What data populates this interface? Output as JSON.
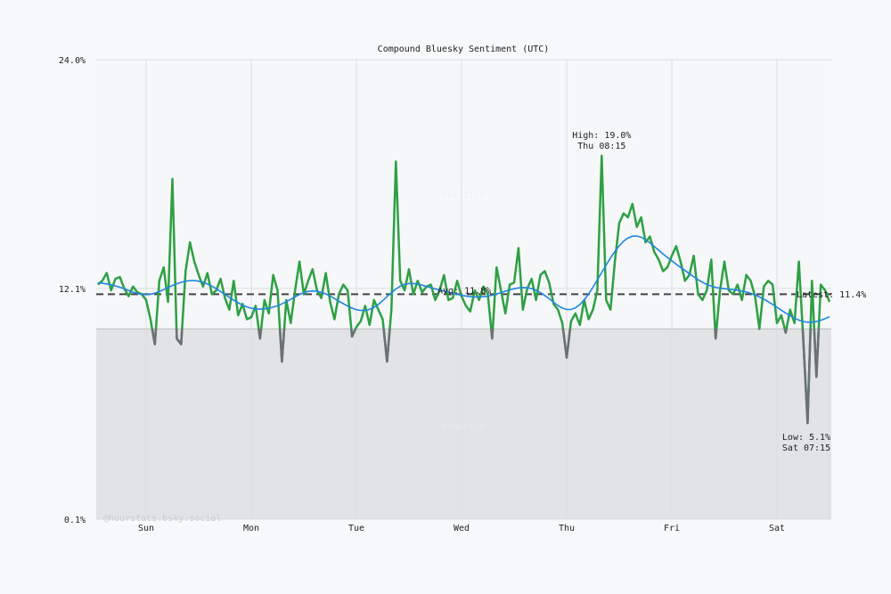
{
  "chart_data": {
    "type": "line",
    "title": "Compound Bluesky Sentiment (UTC)",
    "ylim": [
      0.1,
      24.0
    ],
    "y_tick_labels": [
      "24.0%",
      "12.1%",
      "0.1%"
    ],
    "y_ticks": [
      24.0,
      12.1,
      0.1
    ],
    "x_tick_labels": [
      "Sun",
      "Mon",
      "Tue",
      "Wed",
      "Thu",
      "Fri",
      "Sat"
    ],
    "grid": true,
    "series_start": "Sat 13:00",
    "series_interval": "1h",
    "values": [
      12.3,
      12.5,
      12.9,
      12.0,
      12.6,
      12.7,
      12.1,
      11.7,
      12.2,
      11.9,
      11.8,
      11.5,
      10.5,
      9.2,
      12.5,
      13.2,
      11.4,
      17.8,
      9.5,
      9.2,
      13.0,
      14.5,
      13.5,
      12.8,
      12.2,
      12.9,
      11.8,
      12.0,
      12.6,
      11.6,
      11.0,
      12.5,
      10.7,
      11.3,
      10.5,
      10.6,
      11.2,
      9.5,
      11.5,
      10.8,
      12.8,
      12.0,
      8.3,
      11.5,
      10.3,
      12.0,
      13.5,
      11.8,
      12.5,
      13.1,
      12.0,
      11.6,
      12.9,
      11.4,
      10.5,
      11.8,
      12.3,
      12.0,
      9.6,
      10.1,
      10.4,
      11.2,
      10.2,
      11.5,
      11.0,
      10.5,
      8.3,
      11.0,
      18.7,
      12.5,
      12.0,
      13.1,
      11.8,
      12.5,
      11.9,
      12.2,
      12.3,
      11.5,
      12.0,
      12.8,
      11.5,
      11.6,
      12.5,
      11.7,
      11.2,
      10.9,
      12.0,
      11.5,
      12.2,
      11.8,
      9.5,
      13.2,
      12.0,
      10.8,
      12.3,
      12.4,
      14.2,
      11.0,
      12.1,
      12.6,
      11.5,
      12.8,
      13.0,
      12.4,
      11.3,
      11.0,
      10.3,
      8.5,
      10.4,
      10.8,
      10.2,
      11.5,
      10.5,
      11.0,
      12.0,
      19.0,
      11.5,
      11.0,
      13.5,
      15.5,
      16.0,
      15.8,
      16.5,
      15.3,
      15.8,
      14.5,
      14.8,
      14.0,
      13.6,
      13.0,
      13.2,
      13.8,
      14.3,
      13.5,
      12.5,
      12.8,
      13.8,
      11.8,
      11.5,
      12.0,
      13.6,
      9.5,
      12.0,
      13.5,
      12.0,
      11.8,
      12.3,
      11.5,
      12.8,
      12.5,
      11.7,
      10.0,
      12.2,
      12.5,
      12.3,
      10.3,
      10.7,
      9.8,
      11.0,
      10.3,
      13.5,
      9.5,
      5.1,
      12.5,
      7.5,
      12.3,
      12.0,
      11.4
    ],
    "threshold": 10.0,
    "zone_labels": {
      "positive": "Positive",
      "negative": "Negative"
    },
    "average": {
      "value": 11.8,
      "label": "Avg: 11.8%"
    },
    "high": {
      "value": 19.0,
      "label": "High: 19.0%",
      "time": "Thu 08:15"
    },
    "low": {
      "value": 5.1,
      "label": "Low: 5.1%",
      "time": "Sat 07:15"
    },
    "latest": {
      "value": 11.4,
      "label": "Latest: 11.4%"
    },
    "watermark": "@hourstats.bsky.social",
    "colors": {
      "line_positive": "#2ea043",
      "line_negative": "#6b7075",
      "smoothed": "#1f86e0",
      "average": "#444444",
      "negative_zone": "#e2e3e5",
      "background": "#f7f8fa"
    }
  }
}
